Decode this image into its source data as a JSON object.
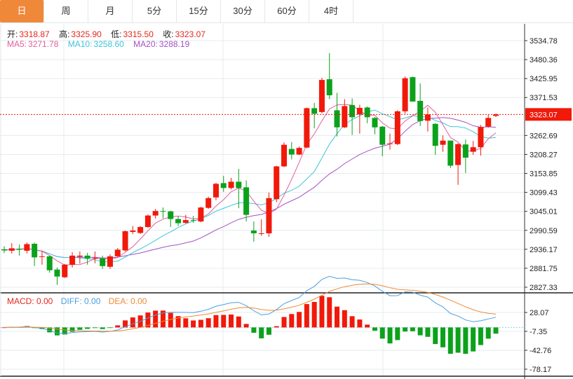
{
  "tabs": [
    {
      "label": "日",
      "active": true
    },
    {
      "label": "周"
    },
    {
      "label": "月"
    },
    {
      "label": "5分"
    },
    {
      "label": "15分"
    },
    {
      "label": "30分"
    },
    {
      "label": "60分"
    },
    {
      "label": "4时"
    }
  ],
  "colors": {
    "up": "#f0190a",
    "down": "#0ba21b",
    "ma5": "#e0609e",
    "ma10": "#3ec4d8",
    "ma20": "#a452c4",
    "macd": "#e3281e",
    "diff": "#4a9fe0",
    "dea": "#ef8a35",
    "active_tab": "#f0883a"
  },
  "ohlc_legend": {
    "open_label": "开:",
    "open": "3318.87",
    "high_label": "高:",
    "high": "3325.90",
    "low_label": "低:",
    "low": "3315.50",
    "close_label": "收:",
    "close": "3323.07"
  },
  "ma_legend": {
    "ma5_label": "MA5:",
    "ma5": "3271.78",
    "ma10_label": "MA10:",
    "ma10": "3258.60",
    "ma20_label": "MA20:",
    "ma20": "3288.19"
  },
  "macd_legend": {
    "macd": "MACD: 0.00",
    "diff": "DIFF: 0.00",
    "dea": "DEA: 0.00"
  },
  "chart_data": {
    "type": "candlestick",
    "price_axis": {
      "ticks": [
        "3534.78",
        "3480.36",
        "3425.95",
        "3371.53",
        "3262.69",
        "3208.27",
        "3153.85",
        "3099.43",
        "3045.01",
        "2990.59",
        "2936.17",
        "2881.75",
        "2827.33"
      ],
      "range": [
        2827.33,
        3534.78
      ]
    },
    "current_price": "3323.07",
    "macd_axis": {
      "ticks": [
        "28.07",
        "-7.35",
        "-42.76",
        "-78.17"
      ]
    },
    "grid": true,
    "candles": [
      [
        2936,
        2933,
        2945,
        2925
      ],
      [
        2932,
        2939,
        2954,
        2924
      ],
      [
        2938,
        2935,
        2950,
        2918
      ],
      [
        2932,
        2951,
        2956,
        2924
      ],
      [
        2952,
        2913,
        2955,
        2888
      ],
      [
        2914,
        2916,
        2932,
        2892
      ],
      [
        2916,
        2876,
        2918,
        2869
      ],
      [
        2878,
        2858,
        2884,
        2834
      ],
      [
        2856,
        2892,
        2894,
        2854
      ],
      [
        2892,
        2918,
        2928,
        2884
      ],
      [
        2915,
        2918,
        2930,
        2895
      ],
      [
        2918,
        2910,
        2926,
        2892
      ],
      [
        2910,
        2912,
        2930,
        2896
      ],
      [
        2910,
        2888,
        2918,
        2880
      ],
      [
        2886,
        2916,
        2922,
        2880
      ],
      [
        2916,
        2935,
        2940,
        2914
      ],
      [
        2933,
        2988,
        2990,
        2930
      ],
      [
        2986,
        2990,
        3003,
        2980
      ],
      [
        2983,
        3000,
        3003,
        2980
      ],
      [
        3000,
        3033,
        3036,
        2998
      ],
      [
        3033,
        3046,
        3052,
        3024
      ],
      [
        3046,
        3044,
        3056,
        3025
      ],
      [
        3045,
        3023,
        3047,
        3000
      ],
      [
        3023,
        3011,
        3031,
        3003
      ],
      [
        3012,
        3020,
        3035,
        3010
      ],
      [
        3020,
        3018,
        3032,
        3012
      ],
      [
        3016,
        3056,
        3058,
        3014
      ],
      [
        3055,
        3083,
        3087,
        3052
      ],
      [
        3085,
        3124,
        3127,
        3077
      ],
      [
        3126,
        3112,
        3147,
        3101
      ],
      [
        3112,
        3130,
        3141,
        3108
      ],
      [
        3130,
        3112,
        3167,
        3054
      ],
      [
        3114,
        3035,
        3134,
        3016
      ],
      [
        2990,
        2982,
        3016,
        2958
      ],
      [
        2980,
        2982,
        3022,
        2975
      ],
      [
        2982,
        3083,
        3099,
        2972
      ],
      [
        3080,
        3174,
        3176,
        3071
      ],
      [
        3174,
        3236,
        3243,
        3172
      ],
      [
        3224,
        3208,
        3244,
        3194
      ],
      [
        3208,
        3227,
        3231,
        3206
      ],
      [
        3228,
        3341,
        3343,
        3226
      ],
      [
        3341,
        3325,
        3356,
        3283
      ],
      [
        3330,
        3422,
        3428,
        3326
      ],
      [
        3424,
        3378,
        3499,
        3367
      ],
      [
        3335,
        3286,
        3385,
        3260
      ],
      [
        3286,
        3347,
        3367,
        3284
      ],
      [
        3350,
        3315,
        3369,
        3264
      ],
      [
        3323,
        3342,
        3351,
        3268
      ],
      [
        3343,
        3315,
        3346,
        3298
      ],
      [
        3313,
        3286,
        3316,
        3266
      ],
      [
        3288,
        3236,
        3290,
        3203
      ],
      [
        3238,
        3240,
        3268,
        3222
      ],
      [
        3238,
        3332,
        3335,
        3235
      ],
      [
        3332,
        3427,
        3432,
        3325
      ],
      [
        3430,
        3360,
        3432,
        3360
      ],
      [
        3362,
        3304,
        3412,
        3290
      ],
      [
        3305,
        3323,
        3343,
        3274
      ],
      [
        3296,
        3233,
        3298,
        3207
      ],
      [
        3236,
        3248,
        3263,
        3216
      ],
      [
        3248,
        3176,
        3248,
        3169
      ],
      [
        3178,
        3238,
        3240,
        3121
      ],
      [
        3237,
        3199,
        3251,
        3155
      ],
      [
        3216,
        3229,
        3247,
        3207
      ],
      [
        3229,
        3287,
        3293,
        3205
      ],
      [
        3288,
        3313,
        3322,
        3285
      ],
      [
        3318.87,
        3323.07,
        3325.9,
        3315.5
      ]
    ]
  }
}
